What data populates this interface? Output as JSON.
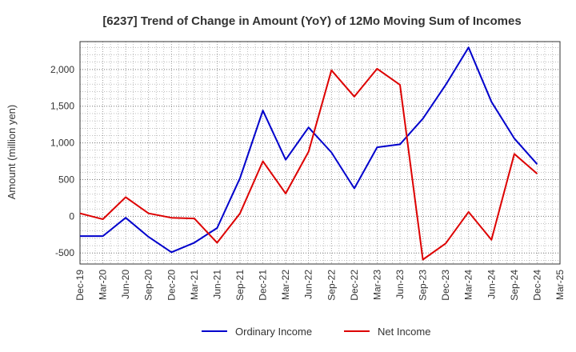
{
  "chart_data": {
    "type": "line",
    "title": "[6237]  Trend of Change in Amount (YoY) of 12Mo Moving Sum of Incomes",
    "ylabel": "Amount (million yen)",
    "xlabel": "",
    "ylim": [
      -650,
      2380
    ],
    "yticks": [
      -500,
      0,
      500,
      1000,
      1500,
      2000
    ],
    "ytick_labels": [
      "-500",
      "0",
      "500",
      "1,000",
      "1,500",
      "2,000"
    ],
    "grid": true,
    "legend_position": "bottom",
    "categories": [
      "Dec-19",
      "Mar-20",
      "Jun-20",
      "Sep-20",
      "Dec-20",
      "Mar-21",
      "Jun-21",
      "Sep-21",
      "Dec-21",
      "Mar-22",
      "Jun-22",
      "Sep-22",
      "Dec-22",
      "Mar-23",
      "Jun-23",
      "Sep-23",
      "Dec-23",
      "Mar-24",
      "Jun-24",
      "Sep-24",
      "Dec-24",
      "Mar-25"
    ],
    "series": [
      {
        "name": "Ordinary Income",
        "color": "#0000cc",
        "values": [
          -270,
          -270,
          -20,
          -280,
          -490,
          -360,
          -160,
          520,
          1440,
          770,
          1210,
          870,
          380,
          940,
          980,
          1330,
          1790,
          2300,
          1560,
          1060,
          710,
          null
        ]
      },
      {
        "name": "Net Income",
        "color": "#dd0000",
        "values": [
          40,
          -40,
          260,
          40,
          -20,
          -30,
          -360,
          40,
          750,
          310,
          880,
          1990,
          1630,
          2010,
          1790,
          -590,
          -370,
          60,
          -320,
          850,
          580,
          null
        ]
      }
    ]
  }
}
